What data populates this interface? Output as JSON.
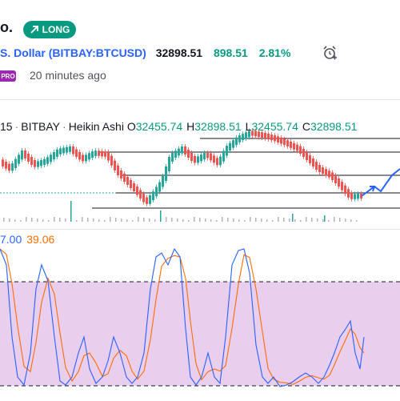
{
  "header": {
    "title_fragment": "o.",
    "badge_label": "LONG",
    "badge_icon": "arrow-up-right-icon",
    "symbol_desc": "S. Dollar",
    "symbol_ticker": "(BITBAY:BTCUSD)",
    "price": "32898.51",
    "change": "898.51",
    "change_pct": "2.81%",
    "alarm_icon": "alarm-clock-icon",
    "pro_label": "PRO",
    "published": "20 minutes ago"
  },
  "legend": {
    "interval": "15",
    "exchange": "BITBAY",
    "chart_style": "Heikin Ashi",
    "o_label": "O",
    "o": "32455.74",
    "h_label": "H",
    "h": "32898.51",
    "l_label": "L",
    "l": "32455.74",
    "c_label": "C",
    "c": "32898.51"
  },
  "oscillator": {
    "k_value": "7.00",
    "d_value": "39.06"
  },
  "colors": {
    "up": "#26a69a",
    "down": "#ef5350",
    "accent": "#2962ff",
    "positive": "#089981",
    "osc_k": "#2962ff",
    "osc_d": "#ff6d00",
    "osc_band": "#e1bee7"
  }
}
